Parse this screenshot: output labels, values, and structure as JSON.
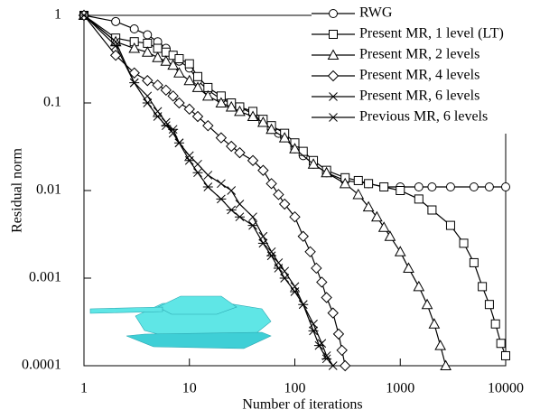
{
  "chart_data": {
    "type": "line",
    "x_label": "Number of iterations",
    "y_label": "Residual norm",
    "xscale": "log",
    "yscale": "log",
    "xlim": [
      1,
      10000
    ],
    "xticks": [
      1,
      10,
      100,
      1000,
      10000
    ],
    "ylim": [
      0.0001,
      1
    ],
    "yticks": [
      1,
      0.1,
      0.01,
      0.001,
      0.0001
    ],
    "legend": "upper right",
    "color": "#000000",
    "series": [
      {
        "name": "RWG",
        "marker": "circle",
        "x": [
          1,
          2,
          3,
          4,
          5,
          6,
          7,
          8,
          10,
          12,
          15,
          20,
          25,
          30,
          40,
          50,
          60,
          70,
          80,
          100,
          120,
          150,
          200,
          300,
          500,
          700,
          1000,
          1500,
          2000,
          3000,
          5000,
          7000,
          10000
        ],
        "values": [
          1,
          0.85,
          0.7,
          0.6,
          0.5,
          0.42,
          0.35,
          0.3,
          0.25,
          0.18,
          0.14,
          0.11,
          0.1,
          0.09,
          0.075,
          0.06,
          0.05,
          0.045,
          0.04,
          0.03,
          0.025,
          0.02,
          0.016,
          0.013,
          0.012,
          0.011,
          0.011,
          0.011,
          0.011,
          0.011,
          0.011,
          0.011,
          0.011
        ]
      },
      {
        "name": "Present MR, 1 level (LT)",
        "marker": "square",
        "x": [
          1,
          2,
          3,
          4,
          5,
          6,
          7,
          8,
          10,
          12,
          15,
          20,
          25,
          30,
          40,
          50,
          60,
          80,
          100,
          120,
          150,
          200,
          300,
          400,
          500,
          700,
          1000,
          1500,
          2000,
          3000,
          4000,
          5000,
          6000,
          7000,
          8000,
          9000,
          10000
        ],
        "values": [
          1,
          0.55,
          0.5,
          0.48,
          0.42,
          0.38,
          0.35,
          0.32,
          0.28,
          0.2,
          0.15,
          0.12,
          0.1,
          0.09,
          0.08,
          0.065,
          0.055,
          0.045,
          0.035,
          0.028,
          0.022,
          0.017,
          0.014,
          0.013,
          0.012,
          0.011,
          0.01,
          0.008,
          0.006,
          0.004,
          0.0025,
          0.0015,
          0.0008,
          0.0005,
          0.0003,
          0.00018,
          0.00013
        ]
      },
      {
        "name": "Present MR, 2 levels",
        "marker": "triangle",
        "x": [
          1,
          2,
          3,
          4,
          5,
          6,
          7,
          8,
          10,
          12,
          15,
          20,
          25,
          30,
          40,
          50,
          60,
          80,
          100,
          150,
          200,
          300,
          400,
          500,
          600,
          700,
          800,
          1000,
          1200,
          1500,
          1800,
          2100,
          2400,
          2700
        ],
        "values": [
          1,
          0.5,
          0.42,
          0.38,
          0.33,
          0.3,
          0.27,
          0.22,
          0.18,
          0.15,
          0.12,
          0.1,
          0.09,
          0.08,
          0.07,
          0.06,
          0.05,
          0.04,
          0.03,
          0.02,
          0.016,
          0.012,
          0.009,
          0.0065,
          0.005,
          0.0038,
          0.003,
          0.002,
          0.0013,
          0.0008,
          0.0005,
          0.0003,
          0.00017,
          0.0001
        ]
      },
      {
        "name": "Present MR, 4 levels",
        "marker": "diamond",
        "x": [
          1,
          2,
          3,
          4,
          5,
          6,
          7,
          8,
          10,
          12,
          15,
          20,
          25,
          30,
          40,
          50,
          60,
          70,
          80,
          100,
          120,
          140,
          160,
          180,
          200,
          230,
          260,
          280,
          300
        ],
        "values": [
          1,
          0.35,
          0.22,
          0.18,
          0.16,
          0.14,
          0.12,
          0.1,
          0.085,
          0.07,
          0.055,
          0.04,
          0.032,
          0.027,
          0.022,
          0.017,
          0.012,
          0.009,
          0.007,
          0.005,
          0.003,
          0.002,
          0.0013,
          0.0009,
          0.0006,
          0.0004,
          0.00023,
          0.00015,
          0.0001
        ]
      },
      {
        "name": "Present MR, 6 levels",
        "marker": "x",
        "x": [
          1,
          2,
          3,
          4,
          5,
          6,
          7,
          8,
          10,
          12,
          15,
          20,
          25,
          30,
          40,
          50,
          60,
          70,
          80,
          100,
          120,
          150,
          180,
          200,
          230
        ],
        "values": [
          1,
          0.5,
          0.17,
          0.12,
          0.08,
          0.06,
          0.045,
          0.035,
          0.025,
          0.02,
          0.015,
          0.012,
          0.01,
          0.007,
          0.005,
          0.003,
          0.002,
          0.0015,
          0.0012,
          0.0008,
          0.0005,
          0.0003,
          0.00018,
          0.00013,
          0.0001
        ]
      },
      {
        "name": "Previous MR, 6 levels",
        "marker": "asterisk",
        "x": [
          1,
          2,
          3,
          4,
          5,
          6,
          7,
          8,
          10,
          12,
          15,
          20,
          25,
          30,
          40,
          50,
          60,
          70,
          80,
          100,
          120,
          150,
          170,
          200
        ],
        "values": [
          1,
          0.45,
          0.17,
          0.1,
          0.07,
          0.055,
          0.05,
          0.035,
          0.022,
          0.016,
          0.011,
          0.008,
          0.006,
          0.005,
          0.004,
          0.0025,
          0.0018,
          0.0013,
          0.001,
          0.0007,
          0.0005,
          0.00025,
          0.00017,
          0.00012
        ]
      }
    ]
  }
}
